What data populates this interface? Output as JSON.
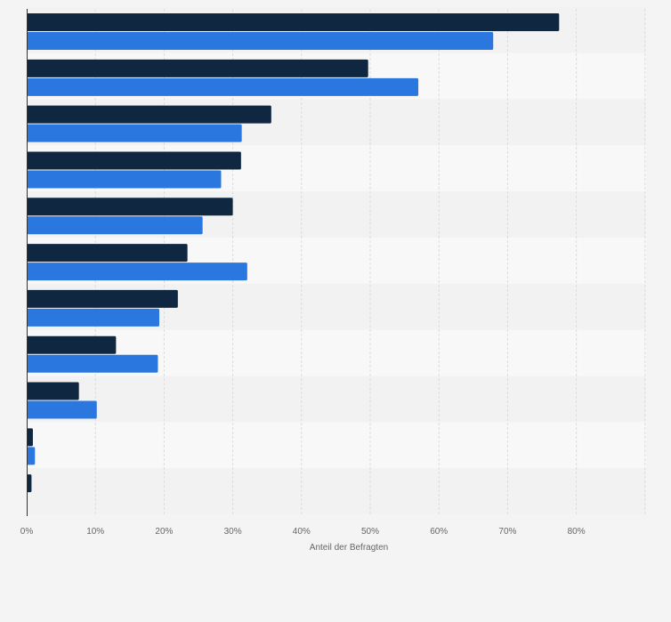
{
  "chart_data": {
    "type": "bar",
    "orientation": "horizontal",
    "title": "",
    "xlabel": "Anteil der Befragten",
    "ylabel": "",
    "xlim": [
      0,
      90
    ],
    "x_tick_values": [
      0,
      10,
      20,
      30,
      40,
      50,
      60,
      70,
      80
    ],
    "x_tick_labels": [
      "0%",
      "10%",
      "20%",
      "30%",
      "40%",
      "50%",
      "60%",
      "70%",
      "80%"
    ],
    "grid": true,
    "legend": "none visible",
    "categories": [
      "",
      "",
      "",
      "",
      "",
      "",
      "",
      "",
      "",
      "",
      ""
    ],
    "series": [
      {
        "name": "",
        "color": "#0f2741",
        "values": [
          77.5,
          49.7,
          35.6,
          31.2,
          30.0,
          23.4,
          22.0,
          13.0,
          7.6,
          0.9,
          0.7
        ]
      },
      {
        "name": "",
        "color": "#2a77e0",
        "values": [
          67.9,
          57.0,
          31.3,
          28.3,
          25.6,
          32.1,
          19.3,
          19.1,
          10.2,
          1.2,
          0.1
        ]
      }
    ]
  },
  "colors": {
    "background": "#f4f4f4",
    "band_light": "#f8f8f8",
    "band_dark": "#f2f2f2",
    "grid": "#dcdcdc",
    "axis": "#333333"
  }
}
